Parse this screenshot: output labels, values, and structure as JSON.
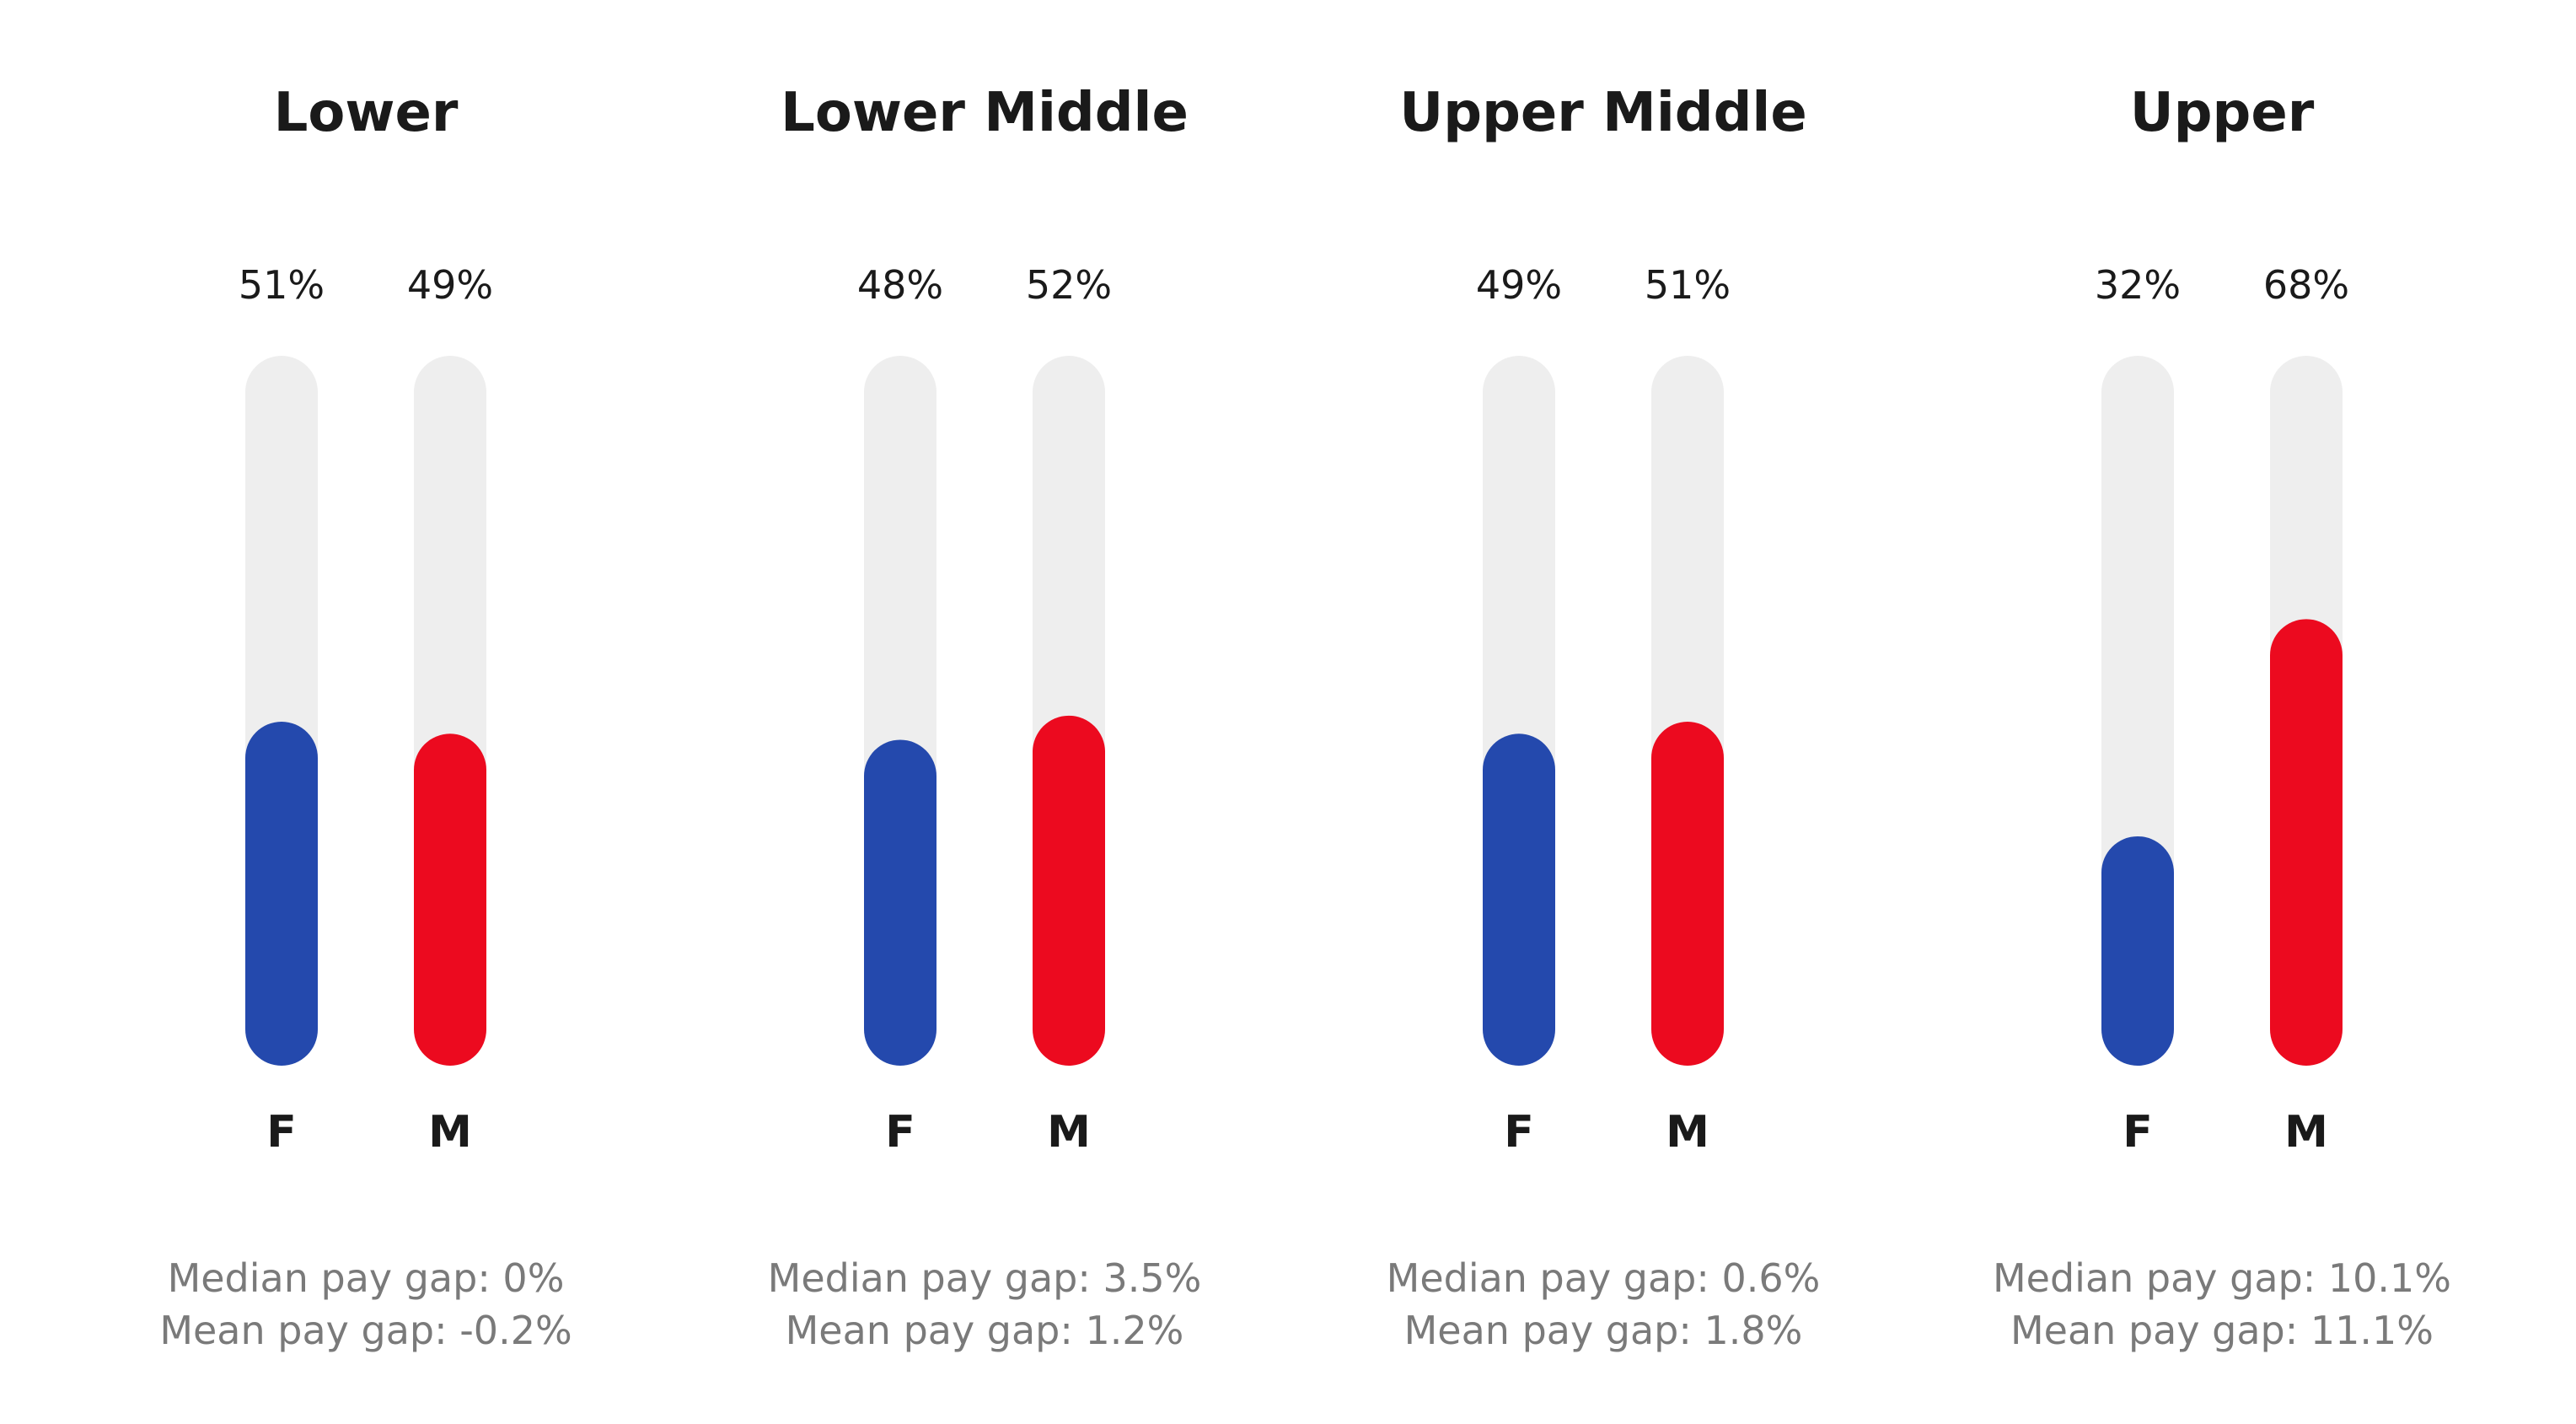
{
  "chart_data": {
    "type": "bar",
    "colors": {
      "F": "#2449ad",
      "M": "#ec0a1f",
      "track": "#eeeeee"
    },
    "ylim": [
      0,
      100
    ],
    "quartiles": [
      {
        "name": "Lower",
        "bars": [
          {
            "label": "F",
            "value": 51,
            "value_label": "51%"
          },
          {
            "label": "M",
            "value": 49,
            "value_label": "49%"
          }
        ],
        "median_text": "Median pay gap: 0%",
        "mean_text": "Mean pay gap: -0.2%"
      },
      {
        "name": "Lower Middle",
        "bars": [
          {
            "label": "F",
            "value": 48,
            "value_label": "48%"
          },
          {
            "label": "M",
            "value": 52,
            "value_label": "52%"
          }
        ],
        "median_text": "Median pay gap: 3.5%",
        "mean_text": "Mean pay gap: 1.2%"
      },
      {
        "name": "Upper Middle",
        "bars": [
          {
            "label": "F",
            "value": 49,
            "value_label": "49%"
          },
          {
            "label": "M",
            "value": 51,
            "value_label": "51%"
          }
        ],
        "median_text": "Median pay gap: 0.6%",
        "mean_text": "Mean pay gap: 1.8%"
      },
      {
        "name": "Upper",
        "bars": [
          {
            "label": "F",
            "value": 32,
            "value_label": "32%"
          },
          {
            "label": "M",
            "value": 68,
            "value_label": "68%"
          }
        ],
        "median_text": "Median pay gap: 10.1%",
        "mean_text": "Mean pay gap: 11.1%"
      }
    ]
  }
}
